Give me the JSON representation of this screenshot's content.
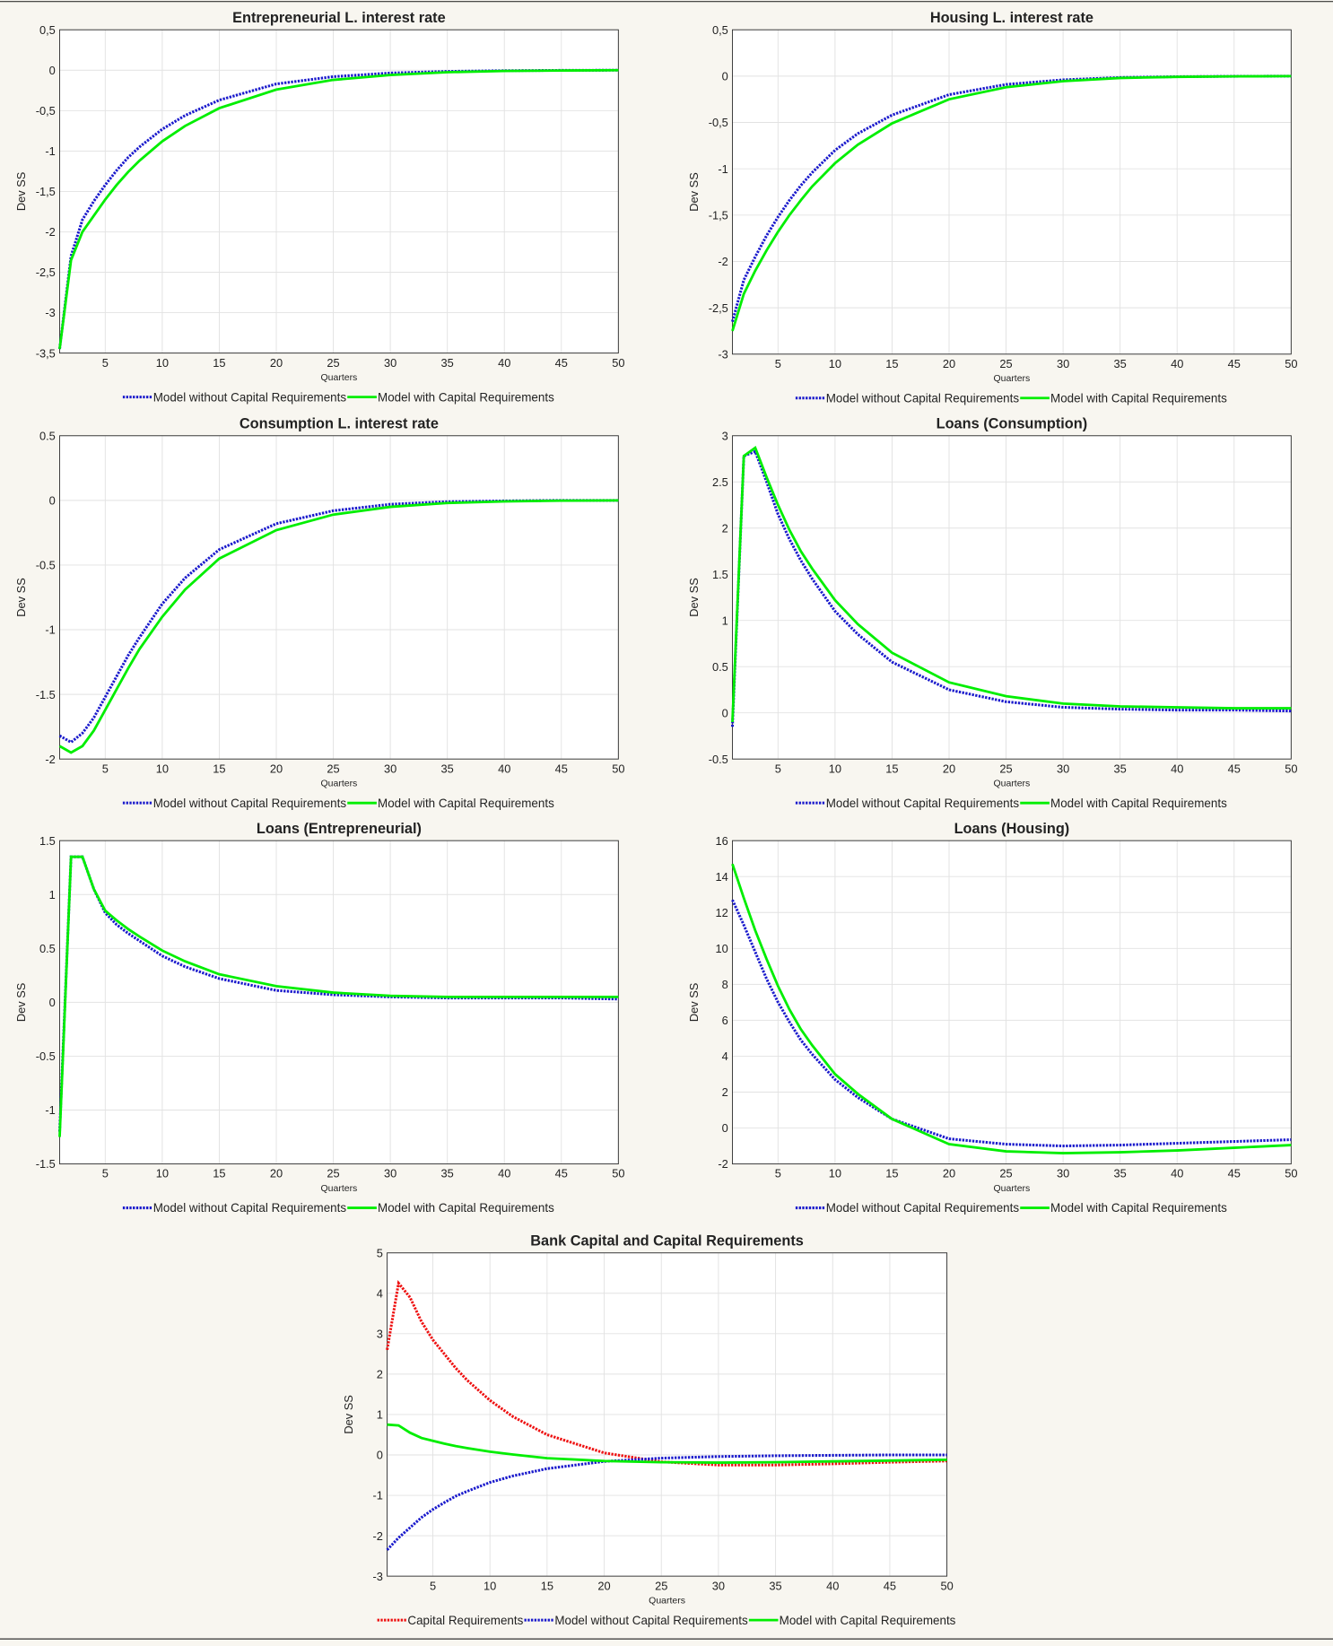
{
  "chart_data": [
    {
      "type": "line",
      "title": "Entrepreneurial L. interest rate",
      "xlabel": "Quarters",
      "ylabel": "Dev SS",
      "x": [
        1,
        2,
        3,
        4,
        5,
        6,
        7,
        8,
        10,
        12,
        15,
        20,
        25,
        30,
        35,
        40,
        45,
        50
      ],
      "xlim": [
        1,
        50
      ],
      "xticks": [
        5,
        10,
        15,
        20,
        25,
        30,
        35,
        40,
        45,
        50
      ],
      "ylim": [
        -3.5,
        0.5
      ],
      "yticks": [
        {
          "value": 0.5,
          "label": "0,5"
        },
        0,
        {
          "value": -0.5,
          "label": "-0,5"
        },
        -1,
        {
          "value": -1.5,
          "label": "-1,5"
        },
        -2,
        {
          "value": -2.5,
          "label": "-2,5"
        },
        -3,
        {
          "value": -3.5,
          "label": "-3,5"
        }
      ],
      "grid": true,
      "series": [
        {
          "name": "Model without Capital Requirements",
          "color": "#1a1acc",
          "style": "dotted",
          "values": [
            -3.45,
            -2.3,
            -1.85,
            -1.62,
            -1.42,
            -1.24,
            -1.08,
            -0.95,
            -0.73,
            -0.56,
            -0.37,
            -0.17,
            -0.08,
            -0.035,
            -0.015,
            -0.006,
            -0.002,
            0
          ]
        },
        {
          "name": "Model with Capital Requirements",
          "color": "#00ee00",
          "style": "solid",
          "values": [
            -3.45,
            -2.35,
            -2.0,
            -1.8,
            -1.6,
            -1.42,
            -1.26,
            -1.12,
            -0.88,
            -0.69,
            -0.47,
            -0.24,
            -0.12,
            -0.06,
            -0.025,
            -0.01,
            -0.004,
            0
          ]
        }
      ]
    },
    {
      "type": "line",
      "title": "Housing L. interest rate",
      "xlabel": "Quarters",
      "ylabel": "Dev SS",
      "x": [
        1,
        2,
        3,
        4,
        5,
        6,
        7,
        8,
        10,
        12,
        15,
        20,
        25,
        30,
        35,
        40,
        45,
        50
      ],
      "xlim": [
        1,
        50
      ],
      "xticks": [
        5,
        10,
        15,
        20,
        25,
        30,
        35,
        40,
        45,
        50
      ],
      "ylim": [
        -3,
        0.5
      ],
      "yticks": [
        {
          "value": 0.5,
          "label": "0,5"
        },
        0,
        {
          "value": -0.5,
          "label": "-0,5"
        },
        -1,
        {
          "value": -1.5,
          "label": "-1,5"
        },
        -2,
        {
          "value": -2.5,
          "label": "-2,5"
        },
        -3
      ],
      "grid": true,
      "series": [
        {
          "name": "Model without Capital Requirements",
          "color": "#1a1acc",
          "style": "dotted",
          "values": [
            -2.65,
            -2.2,
            -1.95,
            -1.72,
            -1.52,
            -1.34,
            -1.18,
            -1.04,
            -0.8,
            -0.62,
            -0.42,
            -0.2,
            -0.09,
            -0.04,
            -0.015,
            -0.006,
            -0.002,
            0
          ]
        },
        {
          "name": "Model with Capital Requirements",
          "color": "#00ee00",
          "style": "solid",
          "values": [
            -2.75,
            -2.35,
            -2.1,
            -1.88,
            -1.68,
            -1.5,
            -1.34,
            -1.19,
            -0.94,
            -0.74,
            -0.51,
            -0.25,
            -0.12,
            -0.055,
            -0.02,
            -0.008,
            -0.003,
            0
          ]
        }
      ]
    },
    {
      "type": "line",
      "title": "Consumption L. interest rate",
      "xlabel": "Quarters",
      "ylabel": "Dev SS",
      "x": [
        1,
        2,
        3,
        4,
        5,
        6,
        7,
        8,
        10,
        12,
        15,
        20,
        25,
        30,
        35,
        40,
        45,
        50
      ],
      "xlim": [
        1,
        50
      ],
      "xticks": [
        5,
        10,
        15,
        20,
        25,
        30,
        35,
        40,
        45,
        50
      ],
      "ylim": [
        -2,
        0.5
      ],
      "yticks": [
        0.5,
        0,
        -0.5,
        -1,
        -1.5,
        -2
      ],
      "grid": true,
      "series": [
        {
          "name": "Model without Capital Requirements",
          "color": "#1a1acc",
          "style": "dotted",
          "values": [
            -1.82,
            -1.87,
            -1.8,
            -1.68,
            -1.52,
            -1.36,
            -1.2,
            -1.06,
            -0.8,
            -0.6,
            -0.38,
            -0.18,
            -0.08,
            -0.03,
            -0.01,
            -0.004,
            0,
            0
          ]
        },
        {
          "name": "Model with Capital Requirements",
          "color": "#00ee00",
          "style": "solid",
          "values": [
            -1.9,
            -1.95,
            -1.9,
            -1.78,
            -1.62,
            -1.46,
            -1.3,
            -1.15,
            -0.9,
            -0.69,
            -0.45,
            -0.23,
            -0.11,
            -0.05,
            -0.02,
            -0.008,
            -0.002,
            0
          ]
        }
      ]
    },
    {
      "type": "line",
      "title": "Loans (Consumption)",
      "xlabel": "Quarters",
      "ylabel": "Dev SS",
      "x": [
        1,
        2,
        3,
        4,
        5,
        6,
        7,
        8,
        10,
        12,
        15,
        20,
        25,
        30,
        35,
        40,
        45,
        50
      ],
      "xlim": [
        1,
        50
      ],
      "xticks": [
        5,
        10,
        15,
        20,
        25,
        30,
        35,
        40,
        45,
        50
      ],
      "ylim": [
        -0.5,
        3
      ],
      "yticks": [
        3,
        2.5,
        2,
        1.5,
        1,
        0.5,
        0,
        -0.5
      ],
      "grid": true,
      "series": [
        {
          "name": "Model without Capital Requirements",
          "color": "#1a1acc",
          "style": "dotted",
          "values": [
            -0.15,
            2.78,
            2.83,
            2.5,
            2.15,
            1.88,
            1.65,
            1.45,
            1.1,
            0.85,
            0.55,
            0.25,
            0.12,
            0.06,
            0.04,
            0.03,
            0.03,
            0.02
          ]
        },
        {
          "name": "Model with Capital Requirements",
          "color": "#00ee00",
          "style": "solid",
          "values": [
            -0.1,
            2.78,
            2.87,
            2.55,
            2.25,
            1.98,
            1.75,
            1.56,
            1.22,
            0.96,
            0.65,
            0.33,
            0.18,
            0.1,
            0.07,
            0.06,
            0.05,
            0.05
          ]
        }
      ]
    },
    {
      "type": "line",
      "title": "Loans (Entrepreneurial)",
      "xlabel": "Quarters",
      "ylabel": "Dev SS",
      "x": [
        1,
        2,
        3,
        4,
        5,
        6,
        7,
        8,
        10,
        12,
        15,
        20,
        25,
        30,
        35,
        40,
        45,
        50
      ],
      "xlim": [
        1,
        50
      ],
      "xticks": [
        5,
        10,
        15,
        20,
        25,
        30,
        35,
        40,
        45,
        50
      ],
      "ylim": [
        -1.5,
        1.5
      ],
      "yticks": [
        1.5,
        1,
        0.5,
        0,
        -0.5,
        -1,
        -1.5
      ],
      "grid": true,
      "series": [
        {
          "name": "Model without Capital Requirements",
          "color": "#1a1acc",
          "style": "dotted",
          "values": [
            -1.2,
            1.35,
            1.35,
            1.05,
            0.83,
            0.72,
            0.64,
            0.57,
            0.43,
            0.33,
            0.22,
            0.11,
            0.07,
            0.05,
            0.04,
            0.04,
            0.04,
            0.03
          ]
        },
        {
          "name": "Model with Capital Requirements",
          "color": "#00ee00",
          "style": "solid",
          "values": [
            -1.25,
            1.35,
            1.35,
            1.05,
            0.85,
            0.76,
            0.68,
            0.61,
            0.48,
            0.38,
            0.26,
            0.15,
            0.09,
            0.06,
            0.05,
            0.05,
            0.05,
            0.05
          ]
        }
      ]
    },
    {
      "type": "line",
      "title": "Loans (Housing)",
      "xlabel": "Quarters",
      "ylabel": "Dev SS",
      "x": [
        1,
        2,
        3,
        4,
        5,
        6,
        7,
        8,
        10,
        12,
        15,
        20,
        25,
        30,
        35,
        40,
        45,
        50
      ],
      "xlim": [
        1,
        50
      ],
      "xticks": [
        5,
        10,
        15,
        20,
        25,
        30,
        35,
        40,
        45,
        50
      ],
      "ylim": [
        -2,
        16
      ],
      "yticks": [
        16,
        14,
        12,
        10,
        8,
        6,
        4,
        2,
        0,
        -2
      ],
      "grid": true,
      "series": [
        {
          "name": "Model without Capital Requirements",
          "color": "#1a1acc",
          "style": "dotted",
          "values": [
            12.7,
            11.3,
            9.8,
            8.3,
            7.0,
            5.9,
            4.9,
            4.1,
            2.7,
            1.7,
            0.5,
            -0.6,
            -0.9,
            -1.0,
            -0.95,
            -0.85,
            -0.75,
            -0.65
          ]
        },
        {
          "name": "Model with Capital Requirements",
          "color": "#00ee00",
          "style": "solid",
          "values": [
            14.7,
            12.8,
            11.0,
            9.4,
            7.9,
            6.6,
            5.5,
            4.6,
            3.0,
            1.9,
            0.5,
            -0.9,
            -1.3,
            -1.4,
            -1.35,
            -1.25,
            -1.1,
            -0.95
          ]
        }
      ]
    },
    {
      "type": "line",
      "title": "Bank Capital and Capital Requirements",
      "xlabel": "Quarters",
      "ylabel": "Dev SS",
      "x": [
        1,
        2,
        3,
        4,
        5,
        6,
        7,
        8,
        10,
        12,
        15,
        20,
        25,
        30,
        35,
        40,
        45,
        50
      ],
      "xlim": [
        1,
        50
      ],
      "xticks": [
        5,
        10,
        15,
        20,
        25,
        30,
        35,
        40,
        45,
        50
      ],
      "ylim": [
        -3,
        5
      ],
      "yticks": [
        5,
        4,
        3,
        2,
        1,
        0,
        -1,
        -2,
        -3
      ],
      "grid": true,
      "series": [
        {
          "name": "Capital Requirements",
          "color": "#ee1111",
          "style": "dotted",
          "values": [
            2.6,
            4.25,
            3.9,
            3.3,
            2.85,
            2.5,
            2.15,
            1.85,
            1.35,
            0.95,
            0.5,
            0.05,
            -0.17,
            -0.25,
            -0.25,
            -0.22,
            -0.18,
            -0.15
          ]
        },
        {
          "name": "Model without Capital Requirements",
          "color": "#1a1acc",
          "style": "dotted",
          "values": [
            -2.35,
            -2.05,
            -1.8,
            -1.55,
            -1.35,
            -1.18,
            -1.02,
            -0.9,
            -0.68,
            -0.52,
            -0.34,
            -0.16,
            -0.08,
            -0.04,
            -0.02,
            -0.01,
            0,
            0
          ]
        },
        {
          "name": "Model with Capital Requirements",
          "color": "#00ee00",
          "style": "solid",
          "values": [
            0.75,
            0.73,
            0.55,
            0.42,
            0.35,
            0.28,
            0.22,
            0.17,
            0.08,
            0.01,
            -0.08,
            -0.15,
            -0.18,
            -0.19,
            -0.18,
            -0.16,
            -0.14,
            -0.12
          ]
        }
      ]
    }
  ]
}
